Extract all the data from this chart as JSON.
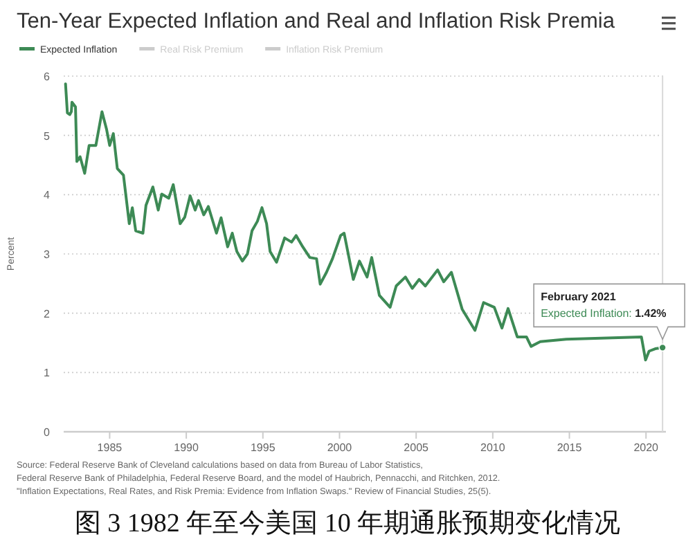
{
  "chart_data": {
    "type": "line",
    "title": "Ten-Year Expected Inflation and Real and Inflation Risk Premia",
    "ylabel": "Percent",
    "xlim": [
      1982,
      2021.3
    ],
    "xticks": [
      {
        "value": 1985,
        "label": "1985"
      },
      {
        "value": 1990,
        "label": "1990"
      },
      {
        "value": 1995,
        "label": "1995"
      },
      {
        "value": 2000,
        "label": "2000"
      },
      {
        "value": 2005,
        "label": "2005"
      },
      {
        "value": 2010,
        "label": "2010"
      },
      {
        "value": 2015,
        "label": "2015"
      },
      {
        "value": 2020,
        "label": "2020"
      }
    ],
    "ylim": [
      0,
      6
    ],
    "yticks": [
      0,
      1,
      2,
      3,
      4,
      5,
      6
    ],
    "grid": "y",
    "legend": "top left",
    "marker": "none",
    "line_style": "solid",
    "series": [
      {
        "name": "Expected Inflation",
        "color": "#3d8a55",
        "x": [
          1982.12,
          1982.24,
          1982.4,
          1982.5,
          1982.54,
          1982.77,
          1982.86,
          1983.07,
          1983.37,
          1983.66,
          1984.1,
          1984.5,
          1984.8,
          1985.0,
          1985.24,
          1985.5,
          1985.9,
          1986.28,
          1986.48,
          1986.7,
          1987.17,
          1987.37,
          1987.82,
          1988.17,
          1988.4,
          1988.86,
          1989.15,
          1989.6,
          1989.9,
          1990.25,
          1990.58,
          1990.8,
          1991.14,
          1991.44,
          1991.97,
          1992.27,
          1992.7,
          1993.0,
          1993.3,
          1993.66,
          1993.99,
          1994.29,
          1994.64,
          1994.94,
          1995.24,
          1995.47,
          1995.89,
          1996.42,
          1996.87,
          1997.17,
          1997.6,
          1998.06,
          1998.5,
          1998.74,
          1999.15,
          1999.54,
          2000.07,
          2000.3,
          2000.9,
          2001.3,
          2001.8,
          2002.1,
          2002.6,
          2003.3,
          2003.7,
          2004.3,
          2004.75,
          2005.2,
          2005.6,
          2006.4,
          2006.8,
          2007.3,
          2008.0,
          2008.84,
          2009.4,
          2010.1,
          2010.6,
          2011.0,
          2011.6,
          2012.2,
          2012.5,
          2013.1,
          2014.8,
          2019.7,
          2019.97,
          2020.2,
          2020.6,
          2021.08
        ],
        "values": [
          5.87,
          5.38,
          5.35,
          5.4,
          5.56,
          5.48,
          4.56,
          4.64,
          4.36,
          4.83,
          4.83,
          5.4,
          5.1,
          4.83,
          5.03,
          4.44,
          4.33,
          3.51,
          3.78,
          3.39,
          3.35,
          3.82,
          4.13,
          3.74,
          4.01,
          3.94,
          4.17,
          3.51,
          3.62,
          3.98,
          3.74,
          3.9,
          3.66,
          3.8,
          3.35,
          3.61,
          3.12,
          3.35,
          3.04,
          2.88,
          3.0,
          3.39,
          3.55,
          3.78,
          3.51,
          3.04,
          2.86,
          3.27,
          3.2,
          3.31,
          3.12,
          2.94,
          2.92,
          2.49,
          2.69,
          2.92,
          3.31,
          3.35,
          2.57,
          2.88,
          2.61,
          2.94,
          2.3,
          2.1,
          2.46,
          2.61,
          2.42,
          2.57,
          2.46,
          2.73,
          2.53,
          2.69,
          2.07,
          1.71,
          2.18,
          2.1,
          1.75,
          2.08,
          1.6,
          1.6,
          1.44,
          1.52,
          1.56,
          1.6,
          1.21,
          1.36,
          1.4,
          1.42
        ]
      },
      {
        "name": "Real Risk Premium",
        "color": "#cccccc"
      },
      {
        "name": "Inflation Risk Premium",
        "color": "#cccccc"
      }
    ],
    "ref_lines": [
      {
        "axis": "x",
        "value": 2021.08,
        "label": null,
        "color": "#d9d9d9"
      }
    ],
    "annotations": [
      {
        "text": "February 2021\nExpected Inflation: 1.42%",
        "x": 2021.08,
        "y": 1.42
      },
      "Source: Federal Reserve Bank of Cleveland calculations based on data from Bureau of Labor Statistics,\nFederal Reserve Bank of Philadelphia, Federal Reserve Board, and the model of Haubrich, Pennacchi, and Ritchken, 2012.\n\"Inflation Expectations, Real Rates, and Risk Premia: Evidence from Inflation Swaps.\" Review of Financial Studies, 25(5).",
      "图 3 1982 年至今美国 10 年期通胀预期变化情况"
    ]
  }
}
